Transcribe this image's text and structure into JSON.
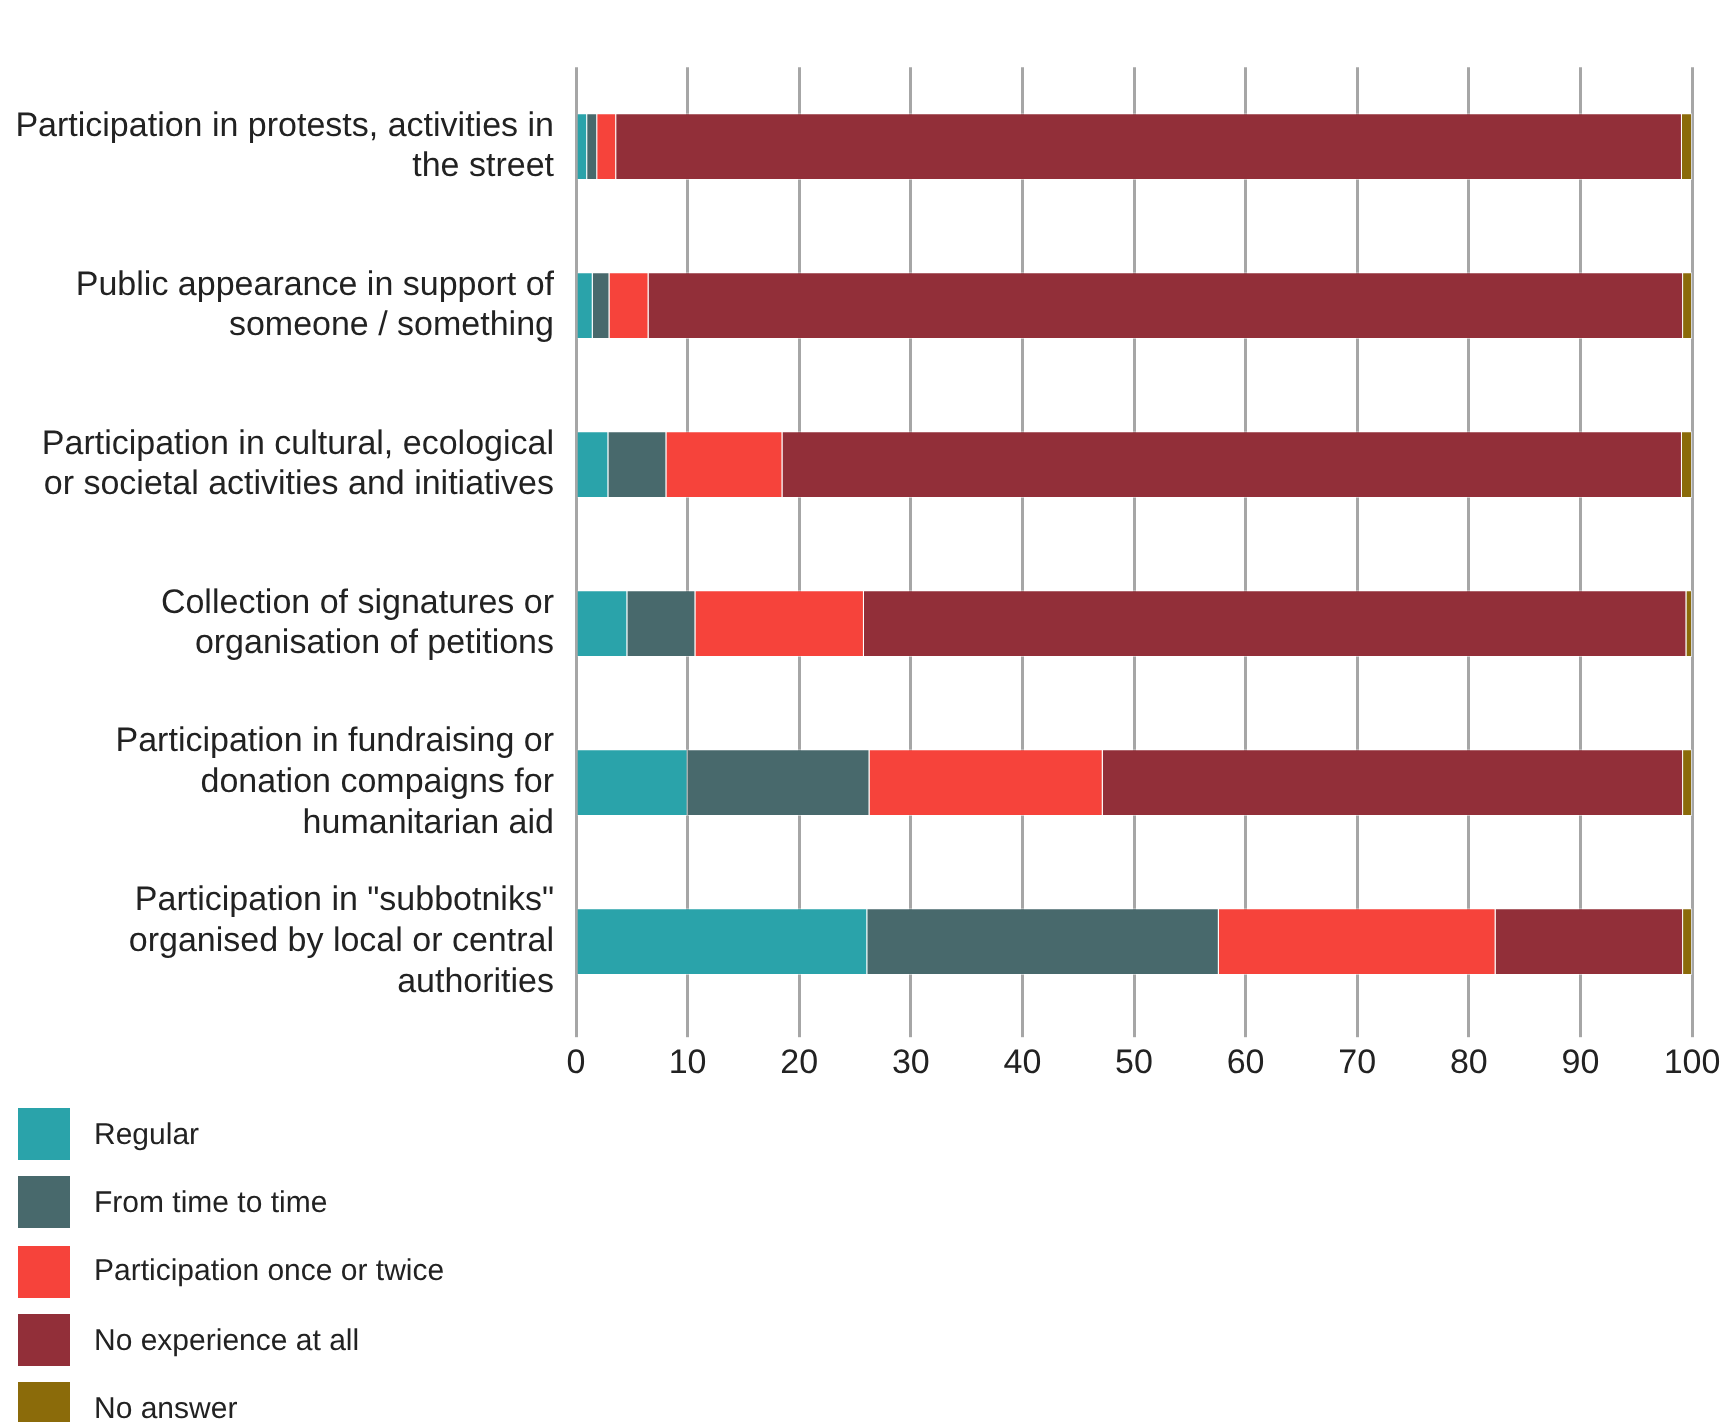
{
  "chart_data": {
    "type": "bar",
    "orientation": "horizontal",
    "stacked": true,
    "categories": [
      "Participation in protests, activities in the street",
      "Public appearance in support of someone / something",
      "Participation in cultural, ecological or societal activities and initiatives",
      "Collection of signatures or organisation of petitions",
      "Participation in fundraising or donation compaigns for humanitarian aid",
      "Participation in \"subbotniks\" organised by local or central authorities"
    ],
    "series": [
      {
        "name": "Regular",
        "color": "#2aa3aa",
        "values": [
          1.0,
          1.5,
          2.9,
          4.6,
          10.0,
          26.1
        ]
      },
      {
        "name": "From time to time",
        "color": "#48696c",
        "values": [
          0.9,
          1.5,
          5.2,
          6.1,
          16.3,
          31.5
        ]
      },
      {
        "name": "Participation once or twice",
        "color": "#f6433b",
        "values": [
          1.7,
          3.5,
          10.4,
          15.1,
          20.9,
          24.8
        ]
      },
      {
        "name": "No experience at all",
        "color": "#922f39",
        "values": [
          95.5,
          92.7,
          80.6,
          73.7,
          52.0,
          16.8
        ]
      },
      {
        "name": "No answer",
        "color": "#8b6b0a",
        "values": [
          0.9,
          0.8,
          0.9,
          0.5,
          0.8,
          0.8
        ]
      }
    ],
    "xlim": [
      0,
      100
    ],
    "xticks": [
      0,
      10,
      20,
      30,
      40,
      50,
      60,
      70,
      80,
      90,
      100
    ],
    "grid": "x",
    "legend": "bottom"
  }
}
